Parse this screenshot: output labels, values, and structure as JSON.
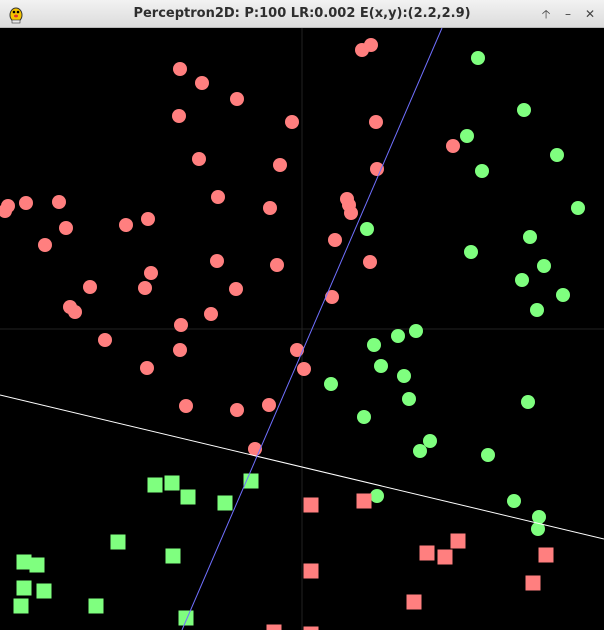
{
  "window": {
    "title": "Perceptron2D: P:100 LR:0.002 E(x,y):(2.2,2.9)",
    "app_icon": "duke-mascot-icon",
    "controls": [
      {
        "name": "maximize-up-button",
        "glyph": "🡡"
      },
      {
        "name": "minimize-button",
        "glyph": "–"
      },
      {
        "name": "close-button",
        "glyph": "✕"
      }
    ]
  },
  "colors": {
    "background": "#000000",
    "red_class": "#ff7f7f",
    "green_class": "#7fff7f",
    "axis": "#222222",
    "separator_line": "#ffffff",
    "target_line": "#7070ff"
  },
  "plot": {
    "x_range": [
      -302,
      302
    ],
    "y_range": [
      -301,
      301
    ],
    "white_line": {
      "from": [
        -302,
        -66
      ],
      "to": [
        302,
        -210
      ]
    },
    "blue_line": {
      "from": [
        -120,
        -301
      ],
      "to": [
        140,
        301
      ]
    },
    "circles_red": [
      [
        -122,
        260
      ],
      [
        -100,
        246
      ],
      [
        -65,
        230
      ],
      [
        -10,
        207
      ],
      [
        -123,
        213
      ],
      [
        -103,
        170
      ],
      [
        -22,
        164
      ],
      [
        -84,
        132
      ],
      [
        -32,
        121
      ],
      [
        -276,
        126
      ],
      [
        -243,
        127
      ],
      [
        -294,
        123
      ],
      [
        -297,
        118
      ],
      [
        -176,
        104
      ],
      [
        -154,
        110
      ],
      [
        -236,
        101
      ],
      [
        -257,
        84
      ],
      [
        -85,
        68
      ],
      [
        -25,
        64
      ],
      [
        -151,
        56
      ],
      [
        -157,
        41
      ],
      [
        -212,
        42
      ],
      [
        -66,
        40
      ],
      [
        -232,
        22
      ],
      [
        -227,
        17
      ],
      [
        -91,
        15
      ],
      [
        -121,
        4
      ],
      [
        -197,
        -11
      ],
      [
        -122,
        -21
      ],
      [
        -5,
        -21
      ],
      [
        30,
        32
      ],
      [
        47,
        124
      ],
      [
        75,
        160
      ],
      [
        60,
        279
      ],
      [
        69,
        284
      ],
      [
        74,
        207
      ],
      [
        45,
        130
      ],
      [
        49,
        116
      ],
      [
        33,
        89
      ],
      [
        68,
        67
      ],
      [
        2,
        -40
      ],
      [
        -116,
        -77
      ],
      [
        -65,
        -81
      ],
      [
        -33,
        -76
      ],
      [
        -155,
        -39
      ],
      [
        -47,
        -120
      ],
      [
        151,
        183
      ]
    ],
    "circles_green": [
      [
        176,
        271
      ],
      [
        222,
        219
      ],
      [
        165,
        193
      ],
      [
        180,
        158
      ],
      [
        255,
        174
      ],
      [
        276,
        121
      ],
      [
        65,
        100
      ],
      [
        228,
        92
      ],
      [
        169,
        77
      ],
      [
        242,
        63
      ],
      [
        220,
        49
      ],
      [
        261,
        34
      ],
      [
        235,
        19
      ],
      [
        114,
        -2
      ],
      [
        96,
        -7
      ],
      [
        72,
        -16
      ],
      [
        79,
        -37
      ],
      [
        102,
        -47
      ],
      [
        29,
        -55
      ],
      [
        107,
        -70
      ],
      [
        226,
        -73
      ],
      [
        62,
        -88
      ],
      [
        128,
        -112
      ],
      [
        118,
        -122
      ],
      [
        186,
        -126
      ],
      [
        212,
        -172
      ],
      [
        237,
        -188
      ],
      [
        236,
        -200
      ],
      [
        75,
        -167
      ]
    ],
    "squares_green": [
      [
        -147,
        -156
      ],
      [
        -130,
        -154
      ],
      [
        -114,
        -168
      ],
      [
        -77,
        -174
      ],
      [
        -51,
        -152
      ],
      [
        -184,
        -213
      ],
      [
        -129,
        -227
      ],
      [
        -278,
        -233
      ],
      [
        -265,
        -236
      ],
      [
        -278,
        -259
      ],
      [
        -258,
        -262
      ],
      [
        -281,
        -277
      ],
      [
        -206,
        -277
      ],
      [
        -116,
        -289
      ]
    ],
    "squares_red": [
      [
        62,
        -172
      ],
      [
        9,
        -176
      ],
      [
        9,
        -242
      ],
      [
        125,
        -224
      ],
      [
        156,
        -212
      ],
      [
        143,
        -228
      ],
      [
        244,
        -226
      ],
      [
        231,
        -254
      ],
      [
        112,
        -273
      ],
      [
        -28,
        -303
      ],
      [
        9,
        -305
      ],
      [
        99,
        -310
      ]
    ]
  }
}
